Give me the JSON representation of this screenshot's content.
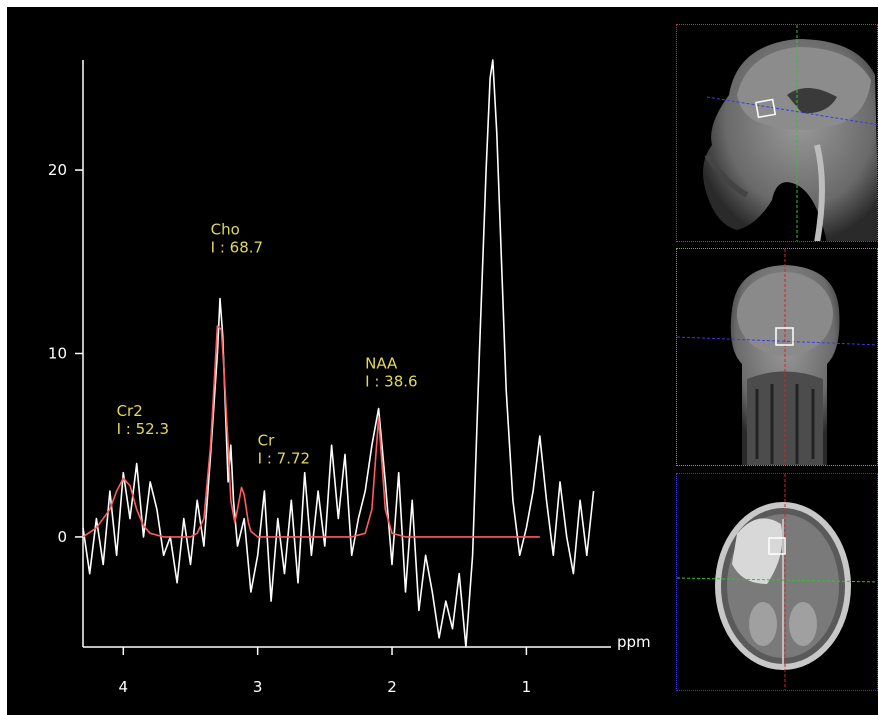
{
  "chart_data": {
    "type": "line",
    "title": "",
    "xlabel": "ppm",
    "ylabel": "",
    "xlim": [
      4.3,
      0.4
    ],
    "ylim": [
      -6,
      26
    ],
    "x_reversed": true,
    "x_ticks": [
      {
        "value": 4,
        "label": "4"
      },
      {
        "value": 3,
        "label": "3"
      },
      {
        "value": 2,
        "label": "2"
      },
      {
        "value": 1,
        "label": "1"
      }
    ],
    "y_ticks": [
      {
        "value": 0,
        "label": "0"
      },
      {
        "value": 10,
        "label": "10"
      },
      {
        "value": 20,
        "label": "20"
      }
    ],
    "series": [
      {
        "color": "#ffffff",
        "role": "measured spectrum",
        "x": [
          4.3,
          4.25,
          4.2,
          4.15,
          4.1,
          4.05,
          4.0,
          3.95,
          3.9,
          3.85,
          3.8,
          3.75,
          3.7,
          3.65,
          3.6,
          3.55,
          3.5,
          3.45,
          3.4,
          3.35,
          3.3,
          3.28,
          3.26,
          3.24,
          3.22,
          3.2,
          3.18,
          3.15,
          3.1,
          3.05,
          3.0,
          2.95,
          2.9,
          2.85,
          2.8,
          2.75,
          2.7,
          2.65,
          2.6,
          2.55,
          2.5,
          2.45,
          2.4,
          2.35,
          2.3,
          2.25,
          2.2,
          2.15,
          2.1,
          2.05,
          2.0,
          1.95,
          1.9,
          1.85,
          1.8,
          1.75,
          1.7,
          1.65,
          1.6,
          1.55,
          1.5,
          1.45,
          1.4,
          1.35,
          1.3,
          1.27,
          1.25,
          1.22,
          1.2,
          1.15,
          1.1,
          1.05,
          1.0,
          0.95,
          0.9,
          0.85,
          0.8,
          0.75,
          0.7,
          0.65,
          0.6,
          0.55,
          0.5
        ],
        "y": [
          0.5,
          -2,
          1,
          -1.5,
          2.5,
          -1,
          3.5,
          1,
          4,
          0,
          3,
          1.5,
          -1,
          0,
          -2.5,
          1,
          -1.5,
          2,
          -0.5,
          4.5,
          10,
          13,
          11,
          7,
          3,
          5,
          2,
          -0.5,
          1,
          -3,
          -1,
          2.5,
          -3.5,
          1,
          -2,
          2,
          -2.5,
          3.5,
          -1,
          2.5,
          -0.5,
          5,
          1,
          4.5,
          -1,
          1,
          2.5,
          5,
          7,
          3,
          -1.5,
          3.5,
          -3,
          2,
          -4,
          -1,
          -3,
          -5.5,
          -3.5,
          -5,
          -2,
          -6,
          -1,
          10,
          20,
          25,
          26,
          22,
          18,
          8,
          2,
          -1,
          0.5,
          2.5,
          5.5,
          2,
          -1,
          3,
          0,
          -2,
          2,
          -1,
          2.5
        ]
      },
      {
        "color": "#ff5c5c",
        "role": "fitted peaks",
        "x": [
          4.3,
          4.2,
          4.1,
          4.05,
          4.0,
          3.95,
          3.9,
          3.85,
          3.8,
          3.7,
          3.6,
          3.5,
          3.45,
          3.4,
          3.35,
          3.3,
          3.27,
          3.25,
          3.22,
          3.2,
          3.17,
          3.15,
          3.12,
          3.1,
          3.07,
          3.05,
          3.0,
          2.9,
          2.8,
          2.5,
          2.3,
          2.2,
          2.15,
          2.12,
          2.1,
          2.08,
          2.05,
          2.0,
          1.9,
          1.5,
          1.0,
          0.9
        ],
        "y": [
          0,
          0.5,
          1.5,
          2.5,
          3.2,
          2.8,
          1.5,
          0.6,
          0.2,
          0,
          0,
          0,
          0.2,
          1,
          5,
          11.5,
          11.3,
          9,
          5,
          2,
          0.8,
          1.5,
          2.7,
          2.3,
          0.8,
          0.3,
          0,
          0,
          0,
          0,
          0,
          0.2,
          1.5,
          4.5,
          6.5,
          4.5,
          1.5,
          0.2,
          0,
          0,
          0,
          0
        ]
      }
    ],
    "annotations": [
      {
        "name": "Cr2",
        "value": "I : 52.3",
        "x": 4.05,
        "y": 5.6
      },
      {
        "name": "Cho",
        "value": "I : 68.7",
        "x": 3.35,
        "y": 15.5
      },
      {
        "name": "Cr",
        "value": "I : 7.72",
        "x": 3.0,
        "y": 4.0
      },
      {
        "name": "NAA",
        "value": "I : 38.6",
        "x": 2.2,
        "y": 8.2
      }
    ]
  },
  "localizer": {
    "panels": [
      {
        "name": "sagittal",
        "border_color": "#d92b2b"
      },
      {
        "name": "coronal",
        "border_color": "#3ec43e"
      },
      {
        "name": "axial",
        "border_color": "#3a3ae0"
      }
    ],
    "line_colors": {
      "red": "#e02020",
      "green": "#2fc42f",
      "blue": "#3a3ae8"
    }
  }
}
